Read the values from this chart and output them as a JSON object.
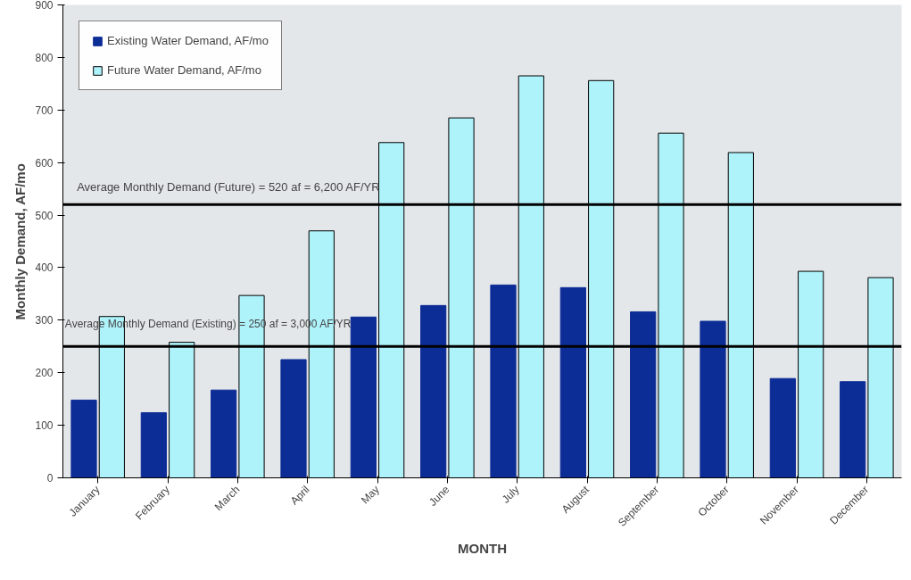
{
  "chart_data": {
    "type": "bar",
    "xlabel": "MONTH",
    "ylabel": "Monthly Demand, AF/mo",
    "categories": [
      "January",
      "February",
      "March",
      "April",
      "May",
      "June",
      "July",
      "August",
      "September",
      "October",
      "November",
      "December"
    ],
    "series": [
      {
        "name": "Existing Water Demand, AF/mo",
        "color": "#0c2c96",
        "values": [
          148,
          124,
          167,
          225,
          306,
          328,
          367,
          362,
          316,
          298,
          189,
          183
        ]
      },
      {
        "name": "Future Water Demand, AF/mo",
        "color": "#aef2fa",
        "values": [
          307,
          258,
          347,
          470,
          638,
          685,
          765,
          756,
          656,
          619,
          393,
          381
        ]
      }
    ],
    "ylim": [
      0,
      900
    ],
    "yticks": [
      0,
      100,
      200,
      300,
      400,
      500,
      600,
      700,
      800,
      900
    ],
    "ref_lines": [
      {
        "axis": "y",
        "value": 520,
        "label": "Average Monthly Demand (Future) = 520 af = 6,200 AF/YR",
        "color": "#000000"
      },
      {
        "axis": "y",
        "value": 250,
        "label": "Average Monthly Demand (Existing) = 250 af = 3,000 AF/YR",
        "color": "#000000"
      }
    ],
    "legend": "top left"
  }
}
